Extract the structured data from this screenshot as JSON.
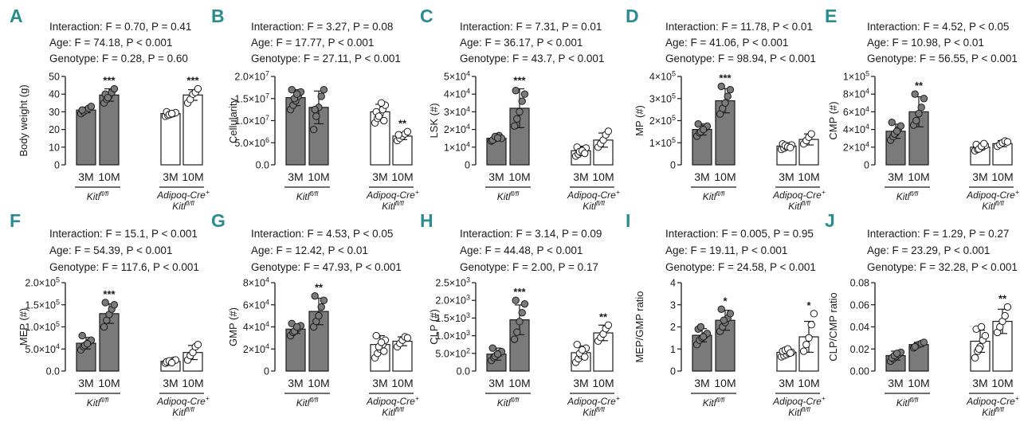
{
  "chart_data": [
    {
      "type": "bar",
      "panel_label": "A",
      "stats": [
        "Interaction: F = 0.70, P = 0.41",
        "Age: F = 74.18, P < 0.001",
        "Genotype: F = 0.28, P = 0.60"
      ],
      "ylabel": "Body weight (g)",
      "ylim": [
        0,
        50
      ],
      "yticks": [
        0,
        10,
        20,
        30,
        40,
        50
      ],
      "ytick_labels": [
        "0",
        "10",
        "20",
        "30",
        "40",
        "50"
      ],
      "categories": [
        "3M",
        "10M",
        "3M",
        "10M"
      ],
      "values": [
        31,
        39.5,
        29,
        39.5
      ],
      "errors": [
        1.5,
        3.5,
        1,
        3
      ],
      "points": [
        [
          29,
          30,
          31,
          32,
          33,
          31
        ],
        [
          35,
          37,
          39,
          41,
          43,
          40,
          38
        ],
        [
          27.5,
          28,
          28.5,
          29,
          29.5,
          30,
          28.5,
          29
        ],
        [
          35,
          37,
          40,
          41,
          43
        ]
      ],
      "significance": [
        "",
        "***",
        "",
        "***"
      ],
      "group_labels": [
        {
          "line1": "Kitl",
          "sup1": "fl/fl"
        },
        {
          "line1": "Adipoq-Cre",
          "sup1": "+",
          "line2": "Kitl",
          "sup2": "fl/fl"
        }
      ]
    },
    {
      "type": "bar",
      "panel_label": "B",
      "stats": [
        "Interaction: F = 3.27, P = 0.08",
        "Age: F = 17.77, P < 0.001",
        "Genotype: F = 27.11, P < 0.001"
      ],
      "ylabel": "Cellularity",
      "ylim": [
        0,
        20000000
      ],
      "yticks": [
        0,
        5000000,
        10000000,
        15000000,
        20000000
      ],
      "ytick_labels": [
        {
          "m": "0.0",
          "e": ""
        },
        {
          "m": "5.0×10",
          "e": "6"
        },
        {
          "m": "1.0×10",
          "e": "7"
        },
        {
          "m": "1.5×10",
          "e": "7"
        },
        {
          "m": "2.0×10",
          "e": "7"
        }
      ],
      "categories": [
        "3M",
        "10M",
        "3M",
        "10M"
      ],
      "values": [
        15200000,
        13000000,
        12000000,
        6500000
      ],
      "errors": [
        1800000,
        3700000,
        1700000,
        800000
      ],
      "points": [
        [
          12500000,
          13500000,
          14500000,
          15500000,
          16500000,
          17000000,
          15000000,
          16000000
        ],
        [
          8000000,
          11000000,
          13000000,
          15500000,
          17000000,
          12500000
        ],
        [
          9500000,
          10500000,
          11500000,
          12500000,
          13500000,
          12000000,
          11000000,
          14000000,
          10000000
        ],
        [
          5500000,
          6000000,
          6500000,
          7000000,
          7500000,
          6800000
        ]
      ],
      "significance": [
        "",
        "",
        "",
        "**"
      ],
      "group_labels": [
        {
          "line1": "Kitl",
          "sup1": "fl/fl"
        },
        {
          "line1": "Adipoq-Cre",
          "sup1": "+",
          "line2": "Kitl",
          "sup2": "fl/fl"
        }
      ]
    },
    {
      "type": "bar",
      "panel_label": "C",
      "stats": [
        "Interaction: F = 7.31, P = 0.01",
        "Age: F = 36.17, P < 0.001",
        "Genotype: F = 43.7, P < 0.001"
      ],
      "ylabel": "LSK (#)",
      "ylim": [
        0,
        50000
      ],
      "yticks": [
        0,
        10000,
        20000,
        30000,
        40000,
        50000
      ],
      "ytick_labels": [
        {
          "m": "0",
          "e": ""
        },
        {
          "m": "1×10",
          "e": "4"
        },
        {
          "m": "2×10",
          "e": "4"
        },
        {
          "m": "3×10",
          "e": "4"
        },
        {
          "m": "4×10",
          "e": "4"
        },
        {
          "m": "5×10",
          "e": "4"
        }
      ],
      "categories": [
        "3M",
        "10M",
        "3M",
        "10M"
      ],
      "values": [
        15000,
        32000,
        8000,
        14000
      ],
      "errors": [
        1500,
        11000,
        2500,
        4000
      ],
      "points": [
        [
          13500,
          14500,
          15500,
          16500,
          15000,
          14000,
          16000,
          15200
        ],
        [
          22000,
          26000,
          30000,
          36000,
          40000,
          42000
        ],
        [
          5000,
          6000,
          7000,
          8500,
          9500,
          10000,
          7500,
          8000,
          6500
        ],
        [
          10000,
          12000,
          14000,
          17000,
          19000
        ]
      ],
      "significance": [
        "",
        "***",
        "",
        ""
      ],
      "group_labels": [
        {
          "line1": "Kitl",
          "sup1": "fl/fl"
        },
        {
          "line1": "Adipoq-Cre",
          "sup1": "+",
          "line2": "Kitl",
          "sup2": "fl/fl"
        }
      ]
    },
    {
      "type": "bar",
      "panel_label": "D",
      "stats": [
        "Interaction: F = 11.78, P < 0.01",
        "Age: F = 41.06, P < 0.001",
        "Genotype: F = 98.94, P < 0.001"
      ],
      "ylabel": "MP (#)",
      "ylim": [
        0,
        400000
      ],
      "yticks": [
        0,
        100000,
        200000,
        300000,
        400000
      ],
      "ytick_labels": [
        {
          "m": "0",
          "e": ""
        },
        {
          "m": "1×10",
          "e": "5"
        },
        {
          "m": "2×10",
          "e": "5"
        },
        {
          "m": "3×10",
          "e": "5"
        },
        {
          "m": "4×10",
          "e": "5"
        }
      ],
      "categories": [
        "3M",
        "10M",
        "3M",
        "10M"
      ],
      "values": [
        160000,
        290000,
        85000,
        115000
      ],
      "errors": [
        25000,
        55000,
        15000,
        25000
      ],
      "points": [
        [
          130000,
          145000,
          155000,
          165000,
          175000,
          185000,
          150000,
          160000
        ],
        [
          230000,
          255000,
          280000,
          310000,
          340000,
          355000
        ],
        [
          70000,
          75000,
          80000,
          85000,
          90000,
          95000,
          88000,
          82000,
          78000
        ],
        [
          95000,
          110000,
          125000,
          140000
        ]
      ],
      "significance": [
        "",
        "***",
        "",
        ""
      ],
      "group_labels": [
        {
          "line1": "Kitl",
          "sup1": "fl/fl"
        },
        {
          "line1": "Adipoq-Cre",
          "sup1": "+",
          "line2": "Kitl",
          "sup2": "fl/fl"
        }
      ]
    },
    {
      "type": "bar",
      "panel_label": "E",
      "stats": [
        "Interaction: F = 4.52, P < 0.05",
        "Age: F = 10.98, P < 0.01",
        "Genotype: F = 56.55, P < 0.001"
      ],
      "ylabel": "CMP (#)",
      "ylim": [
        0,
        100000
      ],
      "yticks": [
        0,
        20000,
        40000,
        60000,
        80000,
        100000
      ],
      "ytick_labels": [
        {
          "m": "0",
          "e": ""
        },
        {
          "m": "2×10",
          "e": "4"
        },
        {
          "m": "4×10",
          "e": "4"
        },
        {
          "m": "6×10",
          "e": "4"
        },
        {
          "m": "8×10",
          "e": "4"
        },
        {
          "m": "1×10",
          "e": "5"
        }
      ],
      "categories": [
        "3M",
        "10M",
        "3M",
        "10M"
      ],
      "values": [
        38000,
        60000,
        20000,
        24000
      ],
      "errors": [
        8000,
        17000,
        3000,
        3500
      ],
      "points": [
        [
          28000,
          32000,
          36000,
          40000,
          44000,
          48000,
          35000,
          38000
        ],
        [
          45000,
          50000,
          58000,
          65000,
          75000,
          80000
        ],
        [
          16000,
          17500,
          19000,
          20500,
          22000,
          23000,
          18000,
          21000,
          24000
        ],
        [
          21000,
          23000,
          25000,
          27000,
          26000
        ]
      ],
      "significance": [
        "",
        "**",
        "",
        ""
      ],
      "group_labels": [
        {
          "line1": "Kitl",
          "sup1": "fl/fl"
        },
        {
          "line1": "Adipoq-Cre",
          "sup1": "+",
          "line2": "Kitl",
          "sup2": "fl/fl"
        }
      ]
    },
    {
      "type": "bar",
      "panel_label": "F",
      "stats": [
        "Interaction: F = 15.1, P < 0.001",
        "Age: F = 54.39, P < 0.001",
        "Genotype: F = 117.6, P < 0.001"
      ],
      "ylabel": "MEP (#)",
      "ylim": [
        0,
        200000
      ],
      "yticks": [
        0,
        50000,
        100000,
        150000,
        200000
      ],
      "ytick_labels": [
        {
          "m": "0.0",
          "e": ""
        },
        {
          "m": "5.0×10",
          "e": "4"
        },
        {
          "m": "1.0×10",
          "e": "5"
        },
        {
          "m": "1.5×10",
          "e": "5"
        },
        {
          "m": "2.0×10",
          "e": "5"
        }
      ],
      "categories": [
        "3M",
        "10M",
        "3M",
        "10M"
      ],
      "values": [
        63000,
        130000,
        22000,
        42000
      ],
      "errors": [
        13000,
        22000,
        3000,
        16000
      ],
      "points": [
        [
          48000,
          55000,
          60000,
          65000,
          70000,
          80000,
          58000,
          62000
        ],
        [
          100000,
          115000,
          128000,
          140000,
          150000,
          155000
        ],
        [
          18000,
          20000,
          22000,
          24000,
          25000,
          21000,
          23000,
          19000
        ],
        [
          25000,
          35000,
          42000,
          55000,
          60000
        ]
      ],
      "significance": [
        "",
        "***",
        "",
        ""
      ],
      "group_labels": [
        {
          "line1": "Kitl",
          "sup1": "fl/fl"
        },
        {
          "line1": "Adipoq-Cre",
          "sup1": "+",
          "line2": "Kitl",
          "sup2": "fl/fl"
        }
      ]
    },
    {
      "type": "bar",
      "panel_label": "G",
      "stats": [
        "Interaction: F = 4.53, P < 0.05",
        "Age: F = 12.42, P < 0.01",
        "Genotype: F = 47.93, P < 0.001"
      ],
      "ylabel": "GMP (#)",
      "ylim": [
        0,
        80000
      ],
      "yticks": [
        0,
        20000,
        40000,
        60000,
        80000
      ],
      "ytick_labels": [
        {
          "m": "0",
          "e": ""
        },
        {
          "m": "2×10",
          "e": "4"
        },
        {
          "m": "4×10",
          "e": "4"
        },
        {
          "m": "6×10",
          "e": "4"
        },
        {
          "m": "8×10",
          "e": "4"
        }
      ],
      "categories": [
        "3M",
        "10M",
        "3M",
        "10M"
      ],
      "values": [
        38000,
        54000,
        24000,
        27000
      ],
      "errors": [
        4000,
        12000,
        8000,
        4000
      ],
      "points": [
        [
          32000,
          35000,
          37000,
          39000,
          41000,
          43000,
          36000,
          40000
        ],
        [
          40000,
          45000,
          50000,
          58000,
          64000,
          68000
        ],
        [
          12000,
          16000,
          20000,
          24000,
          28000,
          32000,
          22000,
          26000,
          18000
        ],
        [
          22000,
          25000,
          28000,
          31000,
          30000
        ]
      ],
      "significance": [
        "",
        "**",
        "",
        ""
      ],
      "group_labels": [
        {
          "line1": "Kitl",
          "sup1": "fl/fl"
        },
        {
          "line1": "Adipoq-Cre",
          "sup1": "+",
          "line2": "Kitl",
          "sup2": "fl/fl"
        }
      ]
    },
    {
      "type": "bar",
      "panel_label": "H",
      "stats": [
        "Interaction: F = 3.14, P = 0.09",
        "Age: F = 44.48, P < 0.001",
        "Genotype: F = 2.00, P = 0.17"
      ],
      "ylabel": "CLP (#)",
      "ylim": [
        0,
        2500
      ],
      "yticks": [
        0,
        500,
        1000,
        1500,
        2000,
        2500
      ],
      "ytick_labels": [
        {
          "m": "0.0",
          "e": ""
        },
        {
          "m": "5.0×10",
          "e": "2"
        },
        {
          "m": "1.0×10",
          "e": "3"
        },
        {
          "m": "1.5×10",
          "e": "3"
        },
        {
          "m": "2.0×10",
          "e": "3"
        },
        {
          "m": "2.5×10",
          "e": "3"
        }
      ],
      "categories": [
        "3M",
        "10M",
        "3M",
        "10M"
      ],
      "values": [
        480,
        1450,
        520,
        1080
      ],
      "errors": [
        170,
        420,
        190,
        220
      ],
      "points": [
        [
          300,
          380,
          450,
          500,
          550,
          650,
          420,
          480
        ],
        [
          900,
          1100,
          1400,
          1650,
          1900,
          2000
        ],
        [
          250,
          350,
          450,
          550,
          650,
          750,
          500,
          600,
          400
        ],
        [
          850,
          950,
          1050,
          1200,
          1300
        ]
      ],
      "significance": [
        "",
        "***",
        "",
        "**"
      ],
      "group_labels": [
        {
          "line1": "Kitl",
          "sup1": "fl/fl"
        },
        {
          "line1": "Adipoq-Cre",
          "sup1": "+",
          "line2": "Kitl",
          "sup2": "fl/fl"
        }
      ]
    },
    {
      "type": "bar",
      "panel_label": "I",
      "stats": [
        "Interaction: F = 0.005, P = 0.95",
        "Age: F = 19.11, P < 0.001",
        "Genotype: F = 24.58, P < 0.001"
      ],
      "ylabel": "MEP/GMP ratio",
      "ylim": [
        0,
        4
      ],
      "yticks": [
        0,
        1,
        2,
        3,
        4
      ],
      "ytick_labels": [
        "0",
        "1",
        "2",
        "3",
        "4"
      ],
      "categories": [
        "3M",
        "10M",
        "3M",
        "10M"
      ],
      "values": [
        1.62,
        2.3,
        0.85,
        1.55
      ],
      "errors": [
        0.3,
        0.45,
        0.15,
        0.7
      ],
      "points": [
        [
          1.2,
          1.4,
          1.5,
          1.6,
          1.7,
          1.9,
          2.0,
          1.55
        ],
        [
          1.8,
          2.0,
          2.2,
          2.4,
          2.6,
          2.8,
          2.3
        ],
        [
          0.65,
          0.7,
          0.75,
          0.8,
          0.85,
          0.9,
          0.95,
          1.0,
          0.82
        ],
        [
          0.9,
          1.2,
          1.5,
          2.1,
          2.6
        ]
      ],
      "significance": [
        "",
        "*",
        "",
        "*"
      ],
      "group_labels": [
        {
          "line1": "Kitl",
          "sup1": "fl/fl"
        },
        {
          "line1": "Adipoq-Cre",
          "sup1": "+",
          "line2": "Kitl",
          "sup2": "fl/fl"
        }
      ]
    },
    {
      "type": "bar",
      "panel_label": "J",
      "stats": [
        "Interaction: F = 1.29, P = 0.27",
        "Age: F = 23.29, P < 0.001",
        "Genotype: F = 32.28, P < 0.001"
      ],
      "ylabel": "CLP/CMP ratio",
      "ylim": [
        0,
        0.08
      ],
      "yticks": [
        0,
        0.02,
        0.04,
        0.06,
        0.08
      ],
      "ytick_labels": [
        "0.00",
        "0.02",
        "0.04",
        "0.06",
        "0.08"
      ],
      "categories": [
        "3M",
        "10M",
        "3M",
        "10M"
      ],
      "values": [
        0.014,
        0.024,
        0.027,
        0.045
      ],
      "errors": [
        0.004,
        0.002,
        0.01,
        0.011
      ],
      "points": [
        [
          0.009,
          0.011,
          0.013,
          0.015,
          0.017,
          0.012,
          0.014,
          0.016
        ],
        [
          0.021,
          0.023,
          0.024,
          0.025,
          0.026,
          0.022
        ],
        [
          0.012,
          0.018,
          0.022,
          0.028,
          0.032,
          0.038,
          0.02,
          0.04
        ],
        [
          0.035,
          0.04,
          0.045,
          0.05,
          0.058
        ]
      ],
      "significance": [
        "",
        "",
        "",
        "**"
      ],
      "group_labels": [
        {
          "line1": "Kitl",
          "sup1": "fl/fl"
        },
        {
          "line1": "Adipoq-Cre",
          "sup1": "+",
          "line2": "Kitl",
          "sup2": "fl/fl"
        }
      ]
    }
  ]
}
